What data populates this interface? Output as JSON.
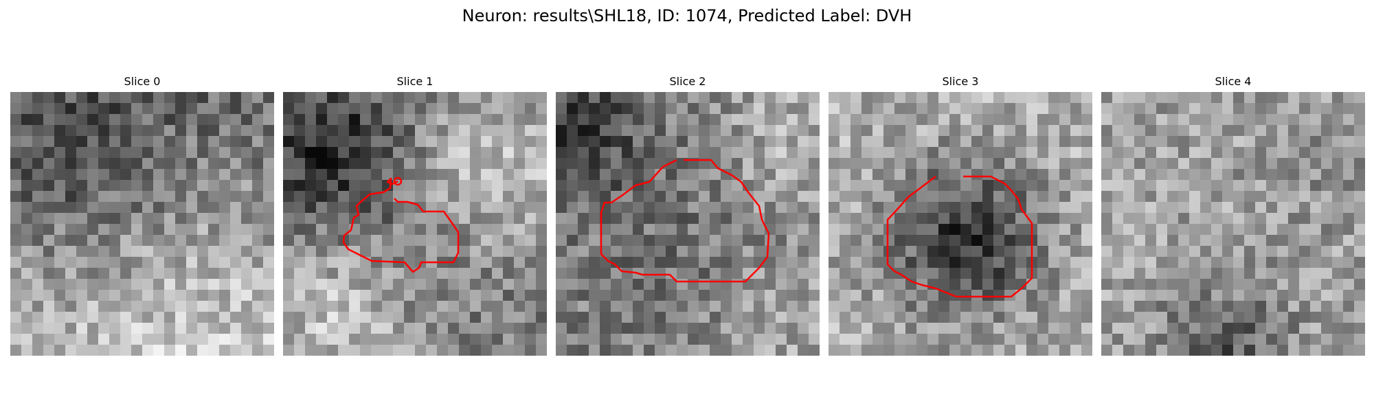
{
  "title": "Neuron: results\\SHL18, ID: 1074, Predicted Label: DVH",
  "contour_color": "#ff0000",
  "panels": [
    {
      "label": "Slice 0",
      "contour": false
    },
    {
      "label": "Slice 1",
      "contour": true
    },
    {
      "label": "Slice 2",
      "contour": true
    },
    {
      "label": "Slice 3",
      "contour": true
    },
    {
      "label": "Slice 4",
      "contour": false
    }
  ]
}
